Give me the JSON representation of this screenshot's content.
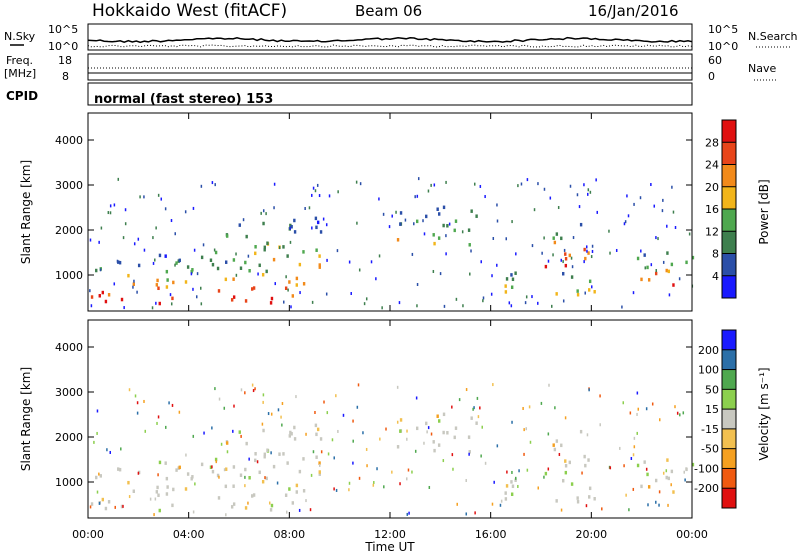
{
  "header": {
    "station": "Hokkaido West (fitACF)",
    "beam": "Beam 06",
    "date": "16/Jan/2016"
  },
  "top_panel": {
    "left_label": "N.Sky",
    "right_label": "N.Search",
    "left_ticks": [
      "10^5",
      "10^0"
    ],
    "right_ticks": [
      "10^5",
      "10^0"
    ]
  },
  "freq_panel": {
    "left_label_1": "Freq.",
    "left_label_2": "[MHz]",
    "right_label": "Nave",
    "left_ticks": [
      "18",
      "8"
    ],
    "right_ticks": [
      "60",
      "0"
    ]
  },
  "cpid": {
    "label": "CPID",
    "text": "normal (fast stereo) 153"
  },
  "colors": {
    "power_scale": [
      "#1a1aff",
      "#2b4fa8",
      "#3e7f4e",
      "#4fa84f",
      "#f2b51a",
      "#f28a1a",
      "#e8451a",
      "#e01010"
    ],
    "velocity_scale": [
      "#e01010",
      "#f05a10",
      "#f5a020",
      "#f2c050",
      "#c8c8c0",
      "#8ccf4e",
      "#4fa84f",
      "#2b6fa8",
      "#1a1aff"
    ],
    "grid": "#000000"
  },
  "chart_data": [
    {
      "type": "heatmap",
      "panel": "power",
      "ylabel": "Slant Range [km]",
      "yticks": [
        "1000",
        "2000",
        "3000",
        "4000"
      ],
      "ylim": [
        200,
        4600
      ],
      "xlim": [
        0,
        24
      ],
      "colorbar": {
        "label": "Power [dB]",
        "ticks": [
          "4",
          "8",
          "12",
          "16",
          "20",
          "24",
          "28"
        ],
        "range": [
          0,
          32
        ]
      },
      "scatter_regions": [
        {
          "t_start": 0.0,
          "t_end": 8.6,
          "range_low": 400,
          "range_high": 1500,
          "level": "strong"
        },
        {
          "t_start": 5.0,
          "t_end": 9.5,
          "range_low": 1200,
          "range_high": 2300,
          "level": "moderate"
        },
        {
          "t_start": 12.0,
          "t_end": 15.5,
          "range_low": 1700,
          "range_high": 2600,
          "level": "moderate"
        },
        {
          "t_start": 16.5,
          "t_end": 20.5,
          "range_low": 600,
          "range_high": 1200,
          "level": "moderate"
        },
        {
          "t_start": 18.0,
          "t_end": 20.0,
          "range_low": 1200,
          "range_high": 2200,
          "level": "strong"
        },
        {
          "t_start": 21.5,
          "t_end": 24.0,
          "range_low": 800,
          "range_high": 1600,
          "level": "strong"
        }
      ]
    },
    {
      "type": "heatmap",
      "panel": "velocity",
      "ylabel": "Slant Range [km]",
      "yticks": [
        "1000",
        "2000",
        "3000",
        "4000"
      ],
      "ylim": [
        200,
        4600
      ],
      "xlim": [
        0,
        24
      ],
      "xticks": [
        "00:00",
        "04:00",
        "08:00",
        "12:00",
        "16:00",
        "20:00",
        "00:00"
      ],
      "xlabel": "Time UT",
      "colorbar": {
        "label": "Velocity [m s⁻¹]",
        "ticks": [
          "200",
          "100",
          "50",
          "15",
          "-15",
          "-50",
          "-100",
          "-200"
        ],
        "range": [
          -250,
          250
        ]
      }
    }
  ]
}
